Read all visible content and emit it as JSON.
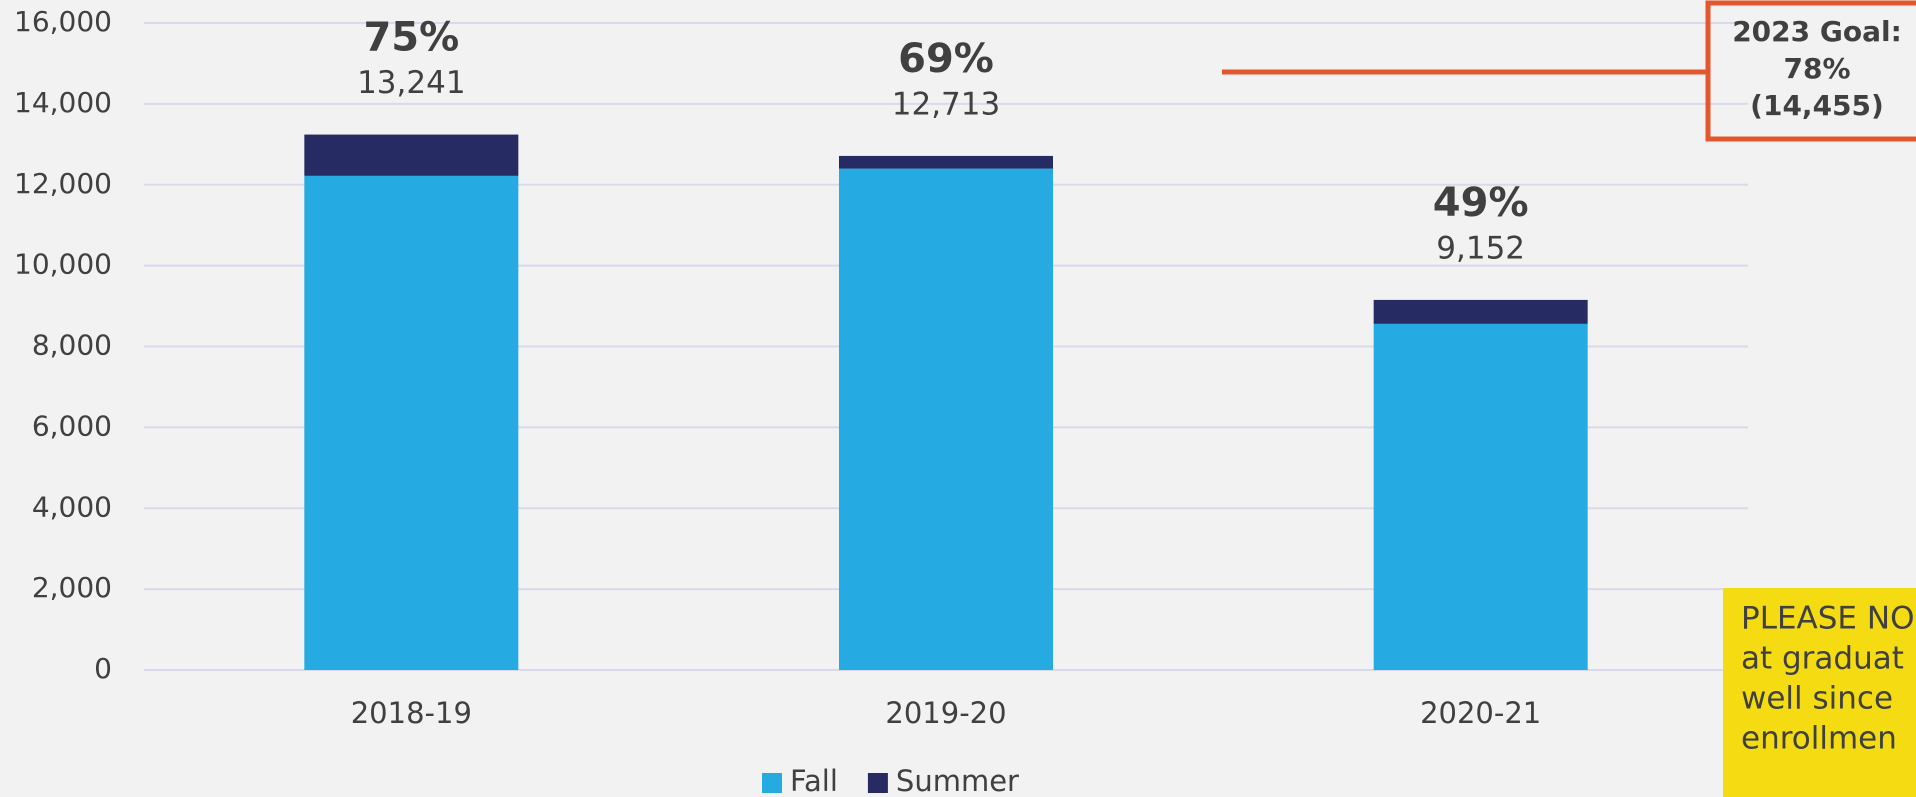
{
  "chart_data": {
    "type": "stacked_bar",
    "categories": [
      "2018-19",
      "2019-20",
      "2020-21"
    ],
    "series": [
      {
        "name": "Fall",
        "color": "#25aae1",
        "values": [
          12220,
          12400,
          8560
        ]
      },
      {
        "name": "Summer",
        "color": "#262b63",
        "values": [
          1021,
          313,
          592
        ]
      }
    ],
    "total_labels": [
      "13,241",
      "12,713",
      "9,152"
    ],
    "percent_labels": [
      "75%",
      "69%",
      "49%"
    ],
    "ylim": [
      0,
      16000
    ],
    "yticks": [
      0,
      {
        "value": 2000,
        "label": "2,000"
      },
      {
        "value": 4000,
        "label": "4,000"
      },
      {
        "value": 6000,
        "label": "6,000"
      },
      {
        "value": 8000,
        "label": "8,000"
      },
      {
        "value": 10000,
        "label": "10,000"
      },
      {
        "value": 12000,
        "label": "12,000"
      },
      {
        "value": 14000,
        "label": "14,000"
      },
      {
        "value": 16000,
        "label": "16,000"
      }
    ],
    "grid": true,
    "legend": "bottom",
    "goal": {
      "lines": [
        "2023 Goal:",
        "78%",
        "(14,455)"
      ]
    },
    "note": {
      "lines": [
        "PLEASE NO",
        "at graduat",
        "well since",
        "enrollmen"
      ]
    }
  }
}
